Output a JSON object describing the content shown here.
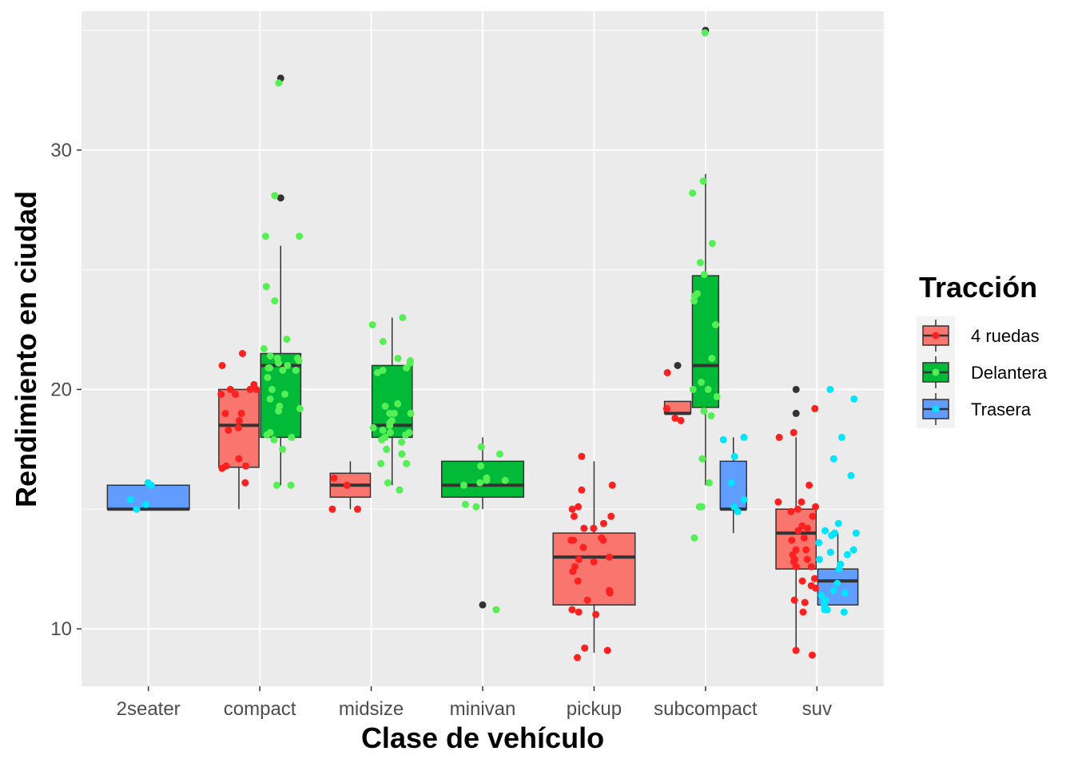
{
  "chart_data": {
    "type": "boxplot",
    "xlabel": "Clase de vehículo",
    "ylabel": "Rendimiento en ciudad",
    "ylim": [
      7.6,
      35.8
    ],
    "y_ticks": [
      10,
      20,
      30
    ],
    "categories": [
      "2seater",
      "compact",
      "midsize",
      "minivan",
      "pickup",
      "subcompact",
      "suv"
    ],
    "legend": {
      "title": "Tracción",
      "position": "right",
      "entries": [
        {
          "key": "4",
          "label": "4 ruedas",
          "fill": "#F8766D",
          "point": "#FF2020"
        },
        {
          "key": "f",
          "label": "Delantera",
          "fill": "#00BA38",
          "point": "#55EE55"
        },
        {
          "key": "r",
          "label": "Trasera",
          "fill": "#619CFF",
          "point": "#00E5FF"
        }
      ]
    },
    "boxes": [
      {
        "category": "2seater",
        "group": "r",
        "min": 15,
        "q1": 15,
        "median": 15,
        "q3": 16,
        "max": 16,
        "outliers": []
      },
      {
        "category": "compact",
        "group": "4",
        "min": 15,
        "q1": 16.75,
        "median": 18.5,
        "q3": 20,
        "max": 20,
        "outliers": []
      },
      {
        "category": "compact",
        "group": "f",
        "min": 16,
        "q1": 18,
        "median": 21,
        "q3": 21.5,
        "max": 26,
        "outliers": [
          28,
          33
        ]
      },
      {
        "category": "midsize",
        "group": "4",
        "min": 15,
        "q1": 15.5,
        "median": 16,
        "q3": 16.5,
        "max": 17,
        "outliers": []
      },
      {
        "category": "midsize",
        "group": "f",
        "min": 16,
        "q1": 18,
        "median": 18.5,
        "q3": 21,
        "max": 23,
        "outliers": []
      },
      {
        "category": "minivan",
        "group": "f",
        "min": 15,
        "q1": 15.5,
        "median": 16,
        "q3": 17,
        "max": 18,
        "outliers": [
          11
        ]
      },
      {
        "category": "pickup",
        "group": "4",
        "min": 9,
        "q1": 11,
        "median": 13,
        "q3": 14,
        "max": 17,
        "outliers": []
      },
      {
        "category": "subcompact",
        "group": "4",
        "min": 19,
        "q1": 19,
        "median": 19,
        "q3": 19.5,
        "max": 19.5,
        "outliers": [
          21
        ]
      },
      {
        "category": "subcompact",
        "group": "f",
        "min": 16,
        "q1": 19.25,
        "median": 21,
        "q3": 24.75,
        "max": 29,
        "outliers": [
          35
        ]
      },
      {
        "category": "subcompact",
        "group": "r",
        "min": 14,
        "q1": 15,
        "median": 15,
        "q3": 17,
        "max": 18,
        "outliers": []
      },
      {
        "category": "suv",
        "group": "4",
        "min": 9,
        "q1": 12.5,
        "median": 14,
        "q3": 15,
        "max": 18,
        "outliers": [
          19,
          20
        ]
      },
      {
        "category": "suv",
        "group": "r",
        "min": 11,
        "q1": 11,
        "median": 12,
        "q3": 12.5,
        "max": 14,
        "outliers": []
      }
    ],
    "points": [
      {
        "category": "2seater",
        "group": "r",
        "values": [
          16.1,
          16,
          15.4,
          15,
          15.2
        ]
      },
      {
        "category": "compact",
        "group": "4",
        "values": [
          18.7,
          21,
          20.2,
          21.5,
          19.8,
          20,
          20,
          16.1,
          16.7,
          17.1,
          18.3,
          16.8,
          19,
          19,
          18.4,
          16.8,
          19.8,
          20
        ]
      },
      {
        "category": "compact",
        "group": "f",
        "values": [
          26.4,
          26.4,
          21.1,
          21.2,
          20.9,
          21.3,
          20.8,
          21,
          20,
          20.5,
          19.2,
          19.1,
          19.6,
          17.5,
          17.9,
          18.1,
          18,
          28.1,
          23.7,
          21.7,
          21.3,
          21.4,
          20.8,
          19.3,
          18.2,
          19.8,
          16,
          16,
          22.1,
          24.3,
          20.9,
          32.8
        ]
      },
      {
        "category": "midsize",
        "group": "4",
        "values": [
          16.3,
          15,
          16,
          15
        ]
      },
      {
        "category": "midsize",
        "group": "f",
        "values": [
          21.3,
          21.1,
          19.3,
          19,
          18.7,
          18.5,
          18.1,
          18.2,
          18.6,
          18.3,
          17.9,
          17.3,
          20.7,
          22,
          23,
          20.9,
          19,
          18.2,
          16.9,
          17.3,
          19.4,
          19,
          18.4,
          18,
          17.5,
          16.9,
          16.1,
          15.8,
          17.8,
          20.8,
          21.2,
          22.7
        ]
      },
      {
        "category": "minivan",
        "group": "f",
        "values": [
          15.1,
          16.3,
          16.1,
          16,
          16.2,
          16.8,
          17.3,
          16.2,
          17.6,
          15.2,
          10.8
        ]
      },
      {
        "category": "pickup",
        "group": "4",
        "values": [
          16,
          13.4,
          15,
          15.1,
          14.4,
          13.7,
          13.8,
          14.7,
          15.8,
          13,
          12.9,
          12.4,
          12.6,
          10.8,
          10.6,
          11.6,
          11.5,
          12,
          12.8,
          13.7,
          14.2,
          14.2,
          14.7,
          11.2,
          17.2,
          9.2,
          9.1,
          8.8,
          10.7,
          13.7
        ]
      },
      {
        "category": "subcompact",
        "group": "4",
        "values": [
          18.7,
          19.2,
          18.8,
          20.7
        ]
      },
      {
        "category": "subcompact",
        "group": "f",
        "values": [
          34.9,
          28.7,
          28.2,
          26.1,
          24.8,
          21.3,
          20.3,
          19.7,
          18.9,
          16.1,
          15.1,
          15.1,
          13.8,
          22.7,
          23.9,
          23.7,
          24,
          25.3,
          20,
          20,
          19.1,
          17.1
        ]
      },
      {
        "category": "subcompact",
        "group": "r",
        "values": [
          17.2,
          15.4,
          15.1,
          16.1,
          17.9,
          18,
          14.9
        ]
      },
      {
        "category": "suv",
        "group": "4",
        "values": [
          9.1,
          8.9,
          10.7,
          11.2,
          12.1,
          12.6,
          13.1,
          13.3,
          13.8,
          14.2,
          14.7,
          15,
          15.1,
          15.3,
          16,
          18.2,
          18,
          19.2,
          14.1,
          14.3,
          13.7,
          13.3,
          12.9,
          12.6,
          12.8,
          11.8,
          11.1,
          15.3,
          14.9,
          12.9,
          11.7,
          12
        ]
      },
      {
        "category": "suv",
        "group": "r",
        "values": [
          11,
          11.5,
          10.8,
          11.2,
          12.5,
          13.2,
          13.6,
          14,
          14.4,
          12.9,
          11.6,
          11.2,
          10.7,
          10.8,
          13.1,
          20,
          19.6,
          18,
          17.1,
          16.4,
          14.1,
          13.9,
          14,
          13.3,
          12.7,
          11.4,
          11.1,
          11.9
        ]
      }
    ]
  }
}
